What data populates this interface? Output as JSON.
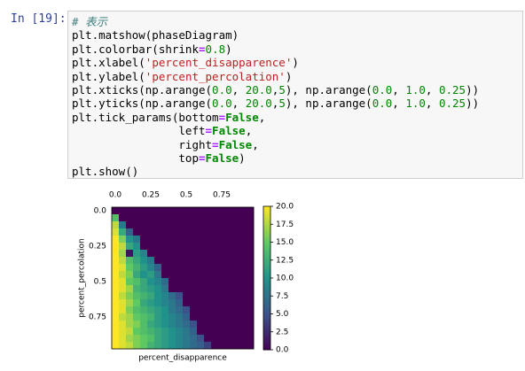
{
  "prompt": "In [19]:",
  "code": [
    "# 表示",
    "plt.matshow(phaseDiagram)",
    "plt.colorbar(shrink=0.8)",
    "plt.xlabel('percent_disapparence')",
    "plt.ylabel('percent_percolation')",
    "plt.xticks(np.arange(0.0, 20.0,5), np.arange(0.0, 1.0, 0.25))",
    "plt.yticks(np.arange(0.0, 20.0,5), np.arange(0.0, 1.0, 0.25))",
    "plt.tick_params(bottom=False,",
    "                left=False,",
    "                right=False,",
    "                top=False)",
    "plt.show()"
  ],
  "chart_data": {
    "type": "heatmap",
    "xlabel": "percent_disapparence",
    "ylabel": "percent_percolation",
    "xlim": [
      -0.5,
      19.5
    ],
    "ylim": [
      19.5,
      -0.5
    ],
    "xticks": [
      {
        "value": 0,
        "label": "0.0"
      },
      {
        "value": 5,
        "label": "0.25"
      },
      {
        "value": 10,
        "label": "0.5"
      },
      {
        "value": 15,
        "label": "0.75"
      }
    ],
    "yticks": [
      {
        "value": 0,
        "label": "0.0"
      },
      {
        "value": 5,
        "label": "0.25"
      },
      {
        "value": 10,
        "label": "0.5"
      },
      {
        "value": 15,
        "label": "0.75"
      }
    ],
    "clim": [
      0,
      20
    ],
    "cticks": [
      {
        "value": 0,
        "label": "0.0"
      },
      2.5,
      {
        "value": 5,
        "label": "5.0"
      },
      7.5,
      {
        "value": 10,
        "label": "10.0"
      },
      12.5,
      {
        "value": 15,
        "label": "15.0"
      },
      17.5,
      {
        "value": 20,
        "label": "20.0"
      }
    ],
    "colormap": [
      "#440154",
      "#3b528b",
      "#21918c",
      "#5ec962",
      "#fde725"
    ],
    "matrix": [
      [
        0,
        0,
        0,
        0,
        0,
        0,
        0,
        0,
        0,
        0,
        0,
        0,
        0,
        0,
        0,
        0,
        0,
        0,
        0,
        0
      ],
      [
        14,
        0,
        0,
        0,
        0,
        0,
        0,
        0,
        0,
        0,
        0,
        0,
        0,
        0,
        0,
        0,
        0,
        0,
        0,
        0
      ],
      [
        18,
        8,
        0,
        0,
        0,
        0,
        0,
        0,
        0,
        0,
        0,
        0,
        0,
        0,
        0,
        0,
        0,
        0,
        0,
        0
      ],
      [
        19,
        12,
        6,
        0,
        0,
        0,
        0,
        0,
        0,
        0,
        0,
        0,
        0,
        0,
        0,
        0,
        0,
        0,
        0,
        0
      ],
      [
        20,
        16,
        10,
        8,
        0,
        0,
        0,
        0,
        0,
        0,
        0,
        0,
        0,
        0,
        0,
        0,
        0,
        0,
        0,
        0
      ],
      [
        20,
        18,
        12,
        10,
        0,
        0,
        0,
        0,
        0,
        0,
        0,
        0,
        0,
        0,
        0,
        0,
        0,
        0,
        0,
        0
      ],
      [
        20,
        17,
        1,
        11,
        9,
        0,
        0,
        0,
        0,
        0,
        0,
        0,
        0,
        0,
        0,
        0,
        0,
        0,
        0,
        0
      ],
      [
        20,
        18,
        14,
        12,
        10,
        8,
        0,
        0,
        0,
        0,
        0,
        0,
        0,
        0,
        0,
        0,
        0,
        0,
        0,
        0
      ],
      [
        20,
        19,
        15,
        13,
        11,
        9,
        6,
        0,
        0,
        0,
        0,
        0,
        0,
        0,
        0,
        0,
        0,
        0,
        0,
        0
      ],
      [
        20,
        18,
        16,
        12,
        10,
        11,
        8,
        0,
        0,
        0,
        0,
        0,
        0,
        0,
        0,
        0,
        0,
        0,
        0,
        0
      ],
      [
        20,
        19,
        15,
        14,
        12,
        10,
        9,
        7,
        0,
        0,
        0,
        0,
        0,
        0,
        0,
        0,
        0,
        0,
        0,
        0
      ],
      [
        20,
        19,
        17,
        13,
        12,
        11,
        10,
        8,
        0,
        0,
        0,
        0,
        0,
        0,
        0,
        0,
        0,
        0,
        0,
        0
      ],
      [
        20,
        18,
        16,
        14,
        13,
        12,
        10,
        9,
        7,
        5,
        0,
        0,
        0,
        0,
        0,
        0,
        0,
        0,
        0,
        0
      ],
      [
        20,
        19,
        17,
        15,
        12,
        11,
        10,
        9,
        8,
        6,
        0,
        0,
        0,
        0,
        0,
        0,
        0,
        0,
        0,
        0
      ],
      [
        20,
        19,
        16,
        14,
        13,
        12,
        11,
        10,
        8,
        7,
        5,
        0,
        0,
        0,
        0,
        0,
        0,
        0,
        0,
        0
      ],
      [
        20,
        18,
        17,
        15,
        14,
        13,
        11,
        10,
        9,
        8,
        6,
        0,
        0,
        0,
        0,
        0,
        0,
        0,
        0,
        0
      ],
      [
        20,
        19,
        17,
        16,
        14,
        12,
        11,
        10,
        9,
        8,
        7,
        5,
        0,
        0,
        0,
        0,
        0,
        0,
        0,
        0
      ],
      [
        20,
        19,
        18,
        15,
        14,
        13,
        12,
        11,
        10,
        9,
        8,
        6,
        0,
        0,
        0,
        0,
        0,
        0,
        0,
        0
      ],
      [
        20,
        19,
        17,
        16,
        15,
        14,
        12,
        11,
        10,
        9,
        8,
        7,
        5,
        0,
        0,
        0,
        0,
        0,
        0,
        0
      ],
      [
        20,
        19,
        18,
        16,
        15,
        13,
        12,
        11,
        10,
        9,
        8,
        7,
        6,
        4,
        0,
        0,
        0,
        0,
        0,
        0
      ]
    ]
  }
}
